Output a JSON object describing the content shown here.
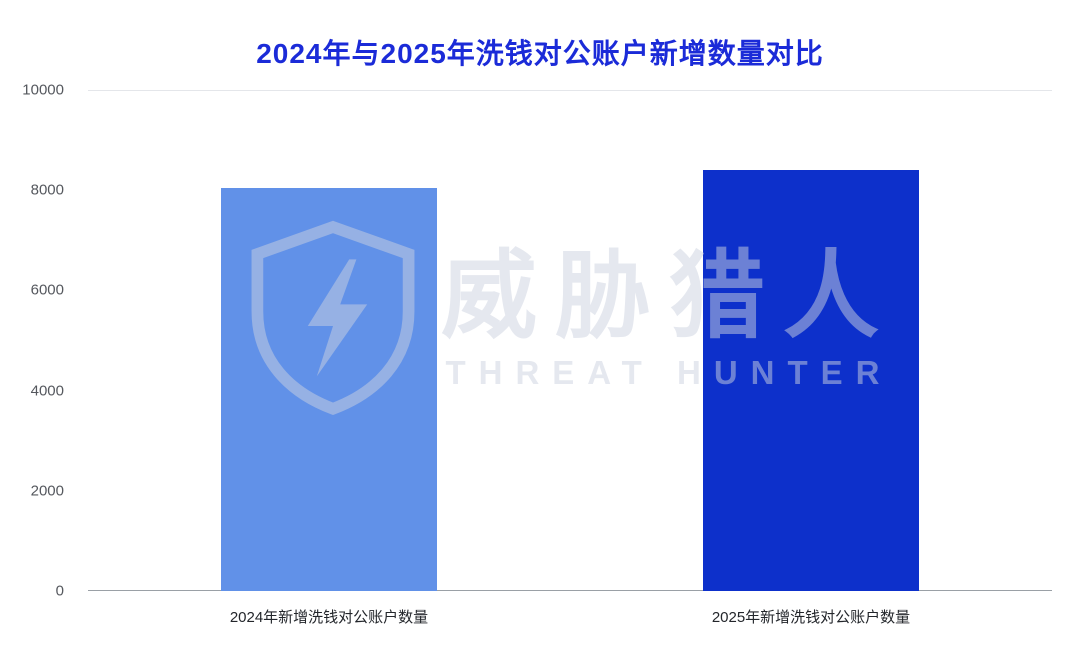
{
  "title": "2024年与2025年洗钱对公账户新增数量对比",
  "watermark": {
    "cn": "威胁猎人",
    "en": "THREAT HUNTER",
    "icon": "shield-lightning-logo"
  },
  "colors": {
    "title": "#1b2bd8",
    "bar_2024": "#6191e8",
    "bar_2025": "#0d30cb",
    "axis_line": "#9aa0a6",
    "gridline": "#e4e6ea",
    "tick_label": "#55585e",
    "category_label": "#23262b",
    "watermark": "rgba(203,209,224,0.5)"
  },
  "chart_data": {
    "type": "bar",
    "title": "2024年与2025年洗钱对公账户新增数量对比",
    "categories": [
      "2024年新增洗钱对公账户数量",
      "2025年新增洗钱对公账户数量"
    ],
    "values": [
      8050,
      8400
    ],
    "bar_colors": [
      "#6191e8",
      "#0d30cb"
    ],
    "xlabel": "",
    "ylabel": "",
    "ylim": [
      0,
      10000
    ],
    "yticks": [
      0,
      2000,
      4000,
      6000,
      8000,
      10000
    ],
    "grid": "top-gridline-only",
    "legend": "none"
  }
}
